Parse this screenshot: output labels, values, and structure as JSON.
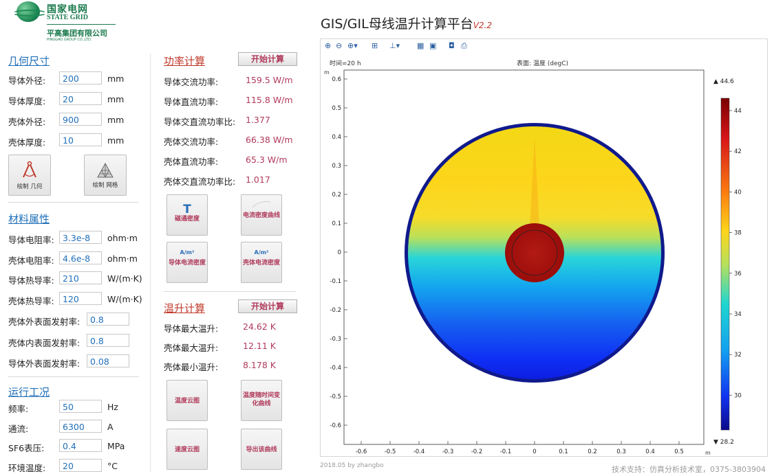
{
  "logo": {
    "cn": "国家电网",
    "en": "STATE GRID",
    "group_cn": "平高集团有限公司",
    "group_en": "PINGGAO GROUP CO.,LTD."
  },
  "app": {
    "title": "GIS/GIL母线温升计算平台",
    "version": "V2.2"
  },
  "geometry": {
    "title": "几何尺寸",
    "fields": [
      {
        "label": "导体外径:",
        "value": "200",
        "unit": "mm"
      },
      {
        "label": "导体厚度:",
        "value": "20",
        "unit": "mm"
      },
      {
        "label": "壳体外径:",
        "value": "900",
        "unit": "mm"
      },
      {
        "label": "壳体厚度:",
        "value": "10",
        "unit": "mm"
      }
    ],
    "draw_geometry": "绘制 几何",
    "draw_mesh": "绘制 网格"
  },
  "material": {
    "title": "材料属性",
    "fields": [
      {
        "label": "导体电阻率:",
        "value": "3.3e-8",
        "unit": "ohm·m"
      },
      {
        "label": "壳体电阻率:",
        "value": "4.6e-8",
        "unit": "ohm·m"
      },
      {
        "label": "导体热导率:",
        "value": "210",
        "unit": "W/(m·K)"
      },
      {
        "label": "壳体热导率:",
        "value": "120",
        "unit": "W/(m·K)"
      }
    ],
    "emissivity": [
      {
        "label": "壳体外表面发射率:",
        "value": "0.8"
      },
      {
        "label": "壳体内表面发射率:",
        "value": "0.8"
      },
      {
        "label": "导体外表面发射率:",
        "value": "0.08"
      }
    ]
  },
  "operating": {
    "title": "运行工况",
    "fields": [
      {
        "label": "频率:",
        "value": "50",
        "unit": "Hz"
      },
      {
        "label": "通流:",
        "value": "6300",
        "unit": "A"
      },
      {
        "label": "SF6表压:",
        "value": "0.4",
        "unit": "MPa"
      },
      {
        "label": "环境温度:",
        "value": "20",
        "unit": "°C"
      }
    ]
  },
  "power": {
    "title": "功率计算",
    "start": "开始计算",
    "rows": [
      {
        "label": "导体交流功率:",
        "value": "159.5 W/m"
      },
      {
        "label": "导体直流功率:",
        "value": "115.8 W/m"
      },
      {
        "label": "导体交直流功率比:",
        "value": "1.377"
      },
      {
        "label": "壳体交流功率:",
        "value": "66.38 W/m"
      },
      {
        "label": "壳体直流功率:",
        "value": "65.3 W/m"
      },
      {
        "label": "壳体交直流功率比:",
        "value": "1.017"
      }
    ],
    "buttons": {
      "flux_icon": "T",
      "flux": "磁通密度",
      "curve": "电流密度曲线",
      "unit_icon": "A/m²",
      "cond_density": "导体电流密度",
      "shell_density": "壳体电流密度"
    }
  },
  "temperature": {
    "title": "温升计算",
    "start": "开始计算",
    "rows": [
      {
        "label": "导体最大温升:",
        "value": "24.62 K"
      },
      {
        "label": "壳体最大温升:",
        "value": "12.11 K"
      },
      {
        "label": "壳体最小温升:",
        "value": "8.178 K"
      }
    ],
    "buttons": {
      "temp_map": "温度云图",
      "temp_curve": "温度随时间变化曲线",
      "velocity_map": "速度云图",
      "export_curve": "导出该曲线"
    }
  },
  "plot": {
    "time_label": "时间=20 h",
    "surface_label": "表面: 温度 (degC)",
    "axis_unit": "m",
    "x_ticks": [
      "-0.6",
      "-0.5",
      "-0.4",
      "-0.3",
      "-0.2",
      "-0.1",
      "0",
      "0.1",
      "0.2",
      "0.3",
      "0.4",
      "0.5"
    ],
    "y_ticks": [
      "0.6",
      "0.5",
      "0.4",
      "0.3",
      "0.2",
      "0.1",
      "0",
      "-0.1",
      "-0.2",
      "-0.3",
      "-0.4",
      "-0.5",
      "-0.6"
    ],
    "colorbar_ticks": [
      "44",
      "42",
      "40",
      "38",
      "36",
      "34",
      "32",
      "30"
    ],
    "colorbar_max": "▲ 44.6",
    "colorbar_min": "▼ 28.2"
  },
  "footer": {
    "left": "2018.05 by zhangbo",
    "right": "技术支持：仿真分析技术室，0375-3803904"
  }
}
